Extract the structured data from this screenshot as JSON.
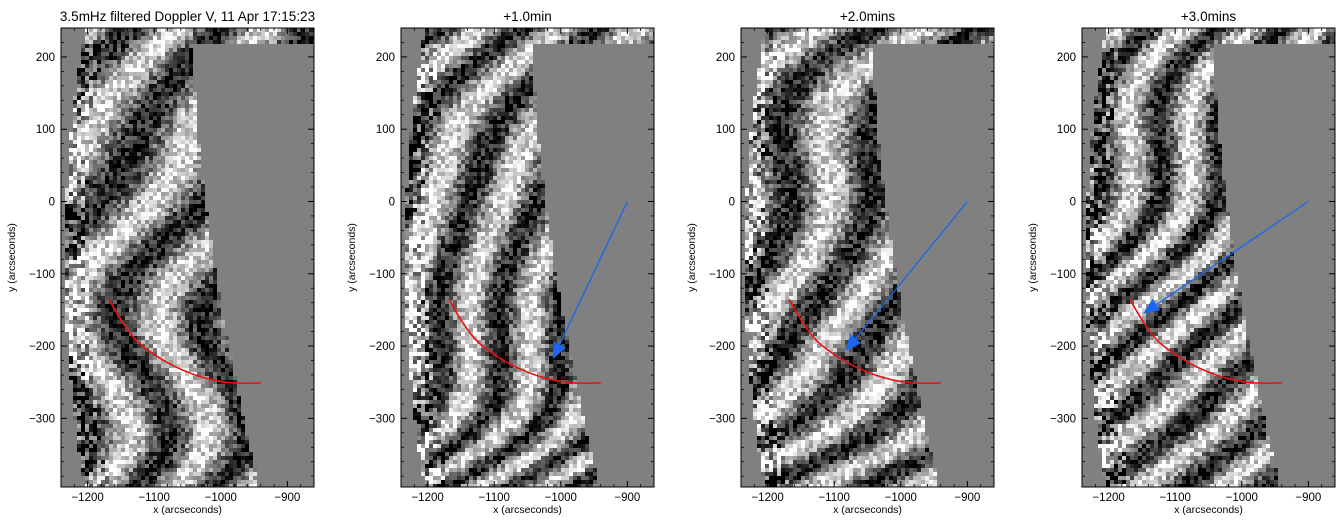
{
  "figure": {
    "panels": [
      {
        "title": "3.5mHz filtered Doppler V, 11 Apr 17:15:23",
        "arrow": null
      },
      {
        "title": "+1.0min",
        "arrow": {
          "from": [
            -900,
            0
          ],
          "to": [
            -1012,
            -218
          ]
        }
      },
      {
        "title": "+2.0mins",
        "arrow": {
          "from": [
            -900,
            0
          ],
          "to": [
            -1083,
            -207
          ]
        }
      },
      {
        "title": "+3.0mins",
        "arrow": {
          "from": [
            -900,
            0
          ],
          "to": [
            -1148,
            -155
          ]
        }
      }
    ],
    "x_axis": {
      "label": "x (arcseconds)",
      "range": [
        -1240,
        -860
      ],
      "ticks": [
        -1200,
        -1100,
        -1000,
        -900
      ]
    },
    "y_axis": {
      "label": "y (arcseconds)",
      "range": [
        -395,
        240
      ],
      "ticks": [
        200,
        100,
        0,
        -100,
        -200,
        -300
      ]
    },
    "red_curve": {
      "points": [
        [
          -1168,
          -135
        ],
        [
          -1140,
          -183
        ],
        [
          -1100,
          -213
        ],
        [
          -1060,
          -233
        ],
        [
          -1020,
          -246
        ],
        [
          -980,
          -252
        ],
        [
          -940,
          -251
        ]
      ]
    },
    "colors": {
      "curve": "#ee1111",
      "arrow": "#1a66ee",
      "background_gray": "#808080"
    }
  }
}
